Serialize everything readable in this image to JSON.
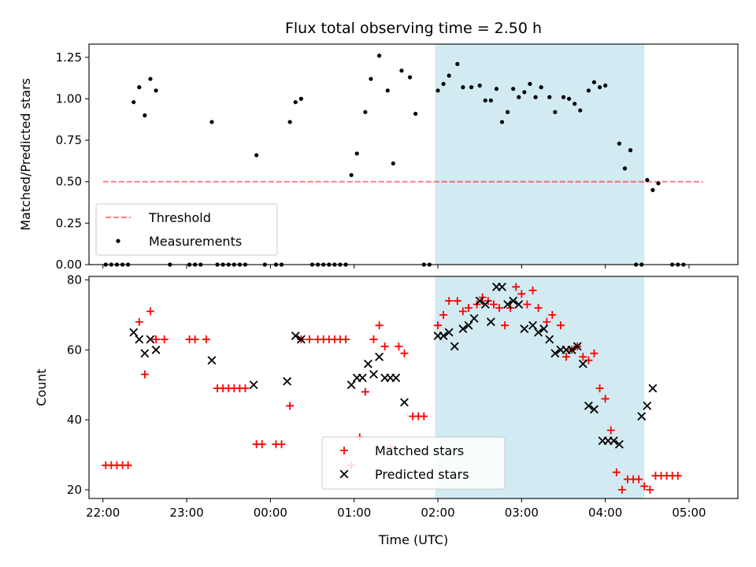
{
  "chart_data": [
    {
      "type": "scatter",
      "title": "Flux total observing time = 2.50 h",
      "ylabel": "Matched/Predicted stars",
      "xlabel": "",
      "xlim": [
        "21:50",
        "05:35"
      ],
      "ylim": [
        0,
        1.33
      ],
      "yticks": [
        "0.00",
        "0.25",
        "0.50",
        "0.75",
        "1.00",
        "1.25"
      ],
      "yticks_values": [
        0,
        0.25,
        0.5,
        0.75,
        1.0,
        1.25
      ],
      "shaded_span": [
        "01:58",
        "04:28"
      ],
      "threshold": {
        "name": "Threshold",
        "value": 0.5,
        "x": [
          "22:00",
          "05:10"
        ]
      },
      "legend": {
        "position": "lower-left",
        "entries": [
          "Threshold",
          "Measurements"
        ]
      },
      "series": [
        {
          "name": "Measurements",
          "points": [
            [
              "22:02",
              0
            ],
            [
              "22:06",
              0
            ],
            [
              "22:10",
              0
            ],
            [
              "22:14",
              0
            ],
            [
              "22:18",
              0
            ],
            [
              "22:22",
              0.98
            ],
            [
              "22:26",
              1.07
            ],
            [
              "22:30",
              0.9
            ],
            [
              "22:34",
              1.12
            ],
            [
              "22:38",
              1.05
            ],
            [
              "22:48",
              0
            ],
            [
              "23:02",
              0
            ],
            [
              "23:06",
              0
            ],
            [
              "23:10",
              0
            ],
            [
              "23:18",
              0.86
            ],
            [
              "23:22",
              0
            ],
            [
              "23:26",
              0
            ],
            [
              "23:30",
              0
            ],
            [
              "23:34",
              0
            ],
            [
              "23:38",
              0
            ],
            [
              "23:42",
              0
            ],
            [
              "23:50",
              0.66
            ],
            [
              "23:56",
              0
            ],
            [
              "00:04",
              0
            ],
            [
              "00:08",
              0
            ],
            [
              "00:14",
              0.86
            ],
            [
              "00:18",
              0.98
            ],
            [
              "00:22",
              1.0
            ],
            [
              "00:30",
              0
            ],
            [
              "00:34",
              0
            ],
            [
              "00:38",
              0
            ],
            [
              "00:42",
              0
            ],
            [
              "00:46",
              0
            ],
            [
              "00:50",
              0
            ],
            [
              "00:54",
              0
            ],
            [
              "00:58",
              0.54
            ],
            [
              "01:02",
              0.67
            ],
            [
              "01:08",
              0.92
            ],
            [
              "01:12",
              1.12
            ],
            [
              "01:18",
              1.26
            ],
            [
              "01:24",
              1.05
            ],
            [
              "01:28",
              0.61
            ],
            [
              "01:34",
              1.17
            ],
            [
              "01:40",
              1.13
            ],
            [
              "01:44",
              0.91
            ],
            [
              "01:50",
              0
            ],
            [
              "01:54",
              0
            ],
            [
              "02:00",
              1.05
            ],
            [
              "02:04",
              1.09
            ],
            [
              "02:08",
              1.14
            ],
            [
              "02:14",
              1.21
            ],
            [
              "02:18",
              1.07
            ],
            [
              "02:24",
              1.07
            ],
            [
              "02:30",
              1.08
            ],
            [
              "02:34",
              0.99
            ],
            [
              "02:38",
              0.99
            ],
            [
              "02:42",
              1.06
            ],
            [
              "02:46",
              0.86
            ],
            [
              "02:50",
              0.92
            ],
            [
              "02:54",
              1.06
            ],
            [
              "02:58",
              1.01
            ],
            [
              "03:02",
              1.04
            ],
            [
              "03:06",
              1.09
            ],
            [
              "03:10",
              1.01
            ],
            [
              "03:14",
              1.07
            ],
            [
              "03:20",
              1.01
            ],
            [
              "03:24",
              0.92
            ],
            [
              "03:30",
              1.01
            ],
            [
              "03:34",
              1.0
            ],
            [
              "03:38",
              0.97
            ],
            [
              "03:42",
              0.93
            ],
            [
              "03:48",
              1.05
            ],
            [
              "03:52",
              1.1
            ],
            [
              "03:56",
              1.07
            ],
            [
              "04:00",
              1.08
            ],
            [
              "04:10",
              0.73
            ],
            [
              "04:14",
              0.58
            ],
            [
              "04:18",
              0.69
            ],
            [
              "04:22",
              0
            ],
            [
              "04:26",
              0
            ],
            [
              "04:30",
              0.51
            ],
            [
              "04:34",
              0.45
            ],
            [
              "04:38",
              0.49
            ],
            [
              "04:48",
              0
            ],
            [
              "04:52",
              0
            ],
            [
              "04:56",
              0
            ]
          ]
        }
      ]
    },
    {
      "type": "scatter",
      "title": "",
      "ylabel": "Count",
      "xlabel": "Time (UTC)",
      "xlim": [
        "21:50",
        "05:35"
      ],
      "ylim": [
        17.5,
        81
      ],
      "yticks": [
        "20",
        "40",
        "60",
        "80"
      ],
      "yticks_values": [
        20,
        40,
        60,
        80
      ],
      "xticks": [
        "22:00",
        "23:00",
        "00:00",
        "01:00",
        "02:00",
        "03:00",
        "04:00",
        "05:00"
      ],
      "shaded_span": [
        "01:58",
        "04:28"
      ],
      "legend": {
        "position": "lower-center",
        "entries": [
          "Matched stars",
          "Predicted stars"
        ]
      },
      "series": [
        {
          "name": "Matched stars",
          "color": "#ff0000",
          "points": [
            [
              "22:02",
              27
            ],
            [
              "22:06",
              27
            ],
            [
              "22:10",
              27
            ],
            [
              "22:14",
              27
            ],
            [
              "22:18",
              27
            ],
            [
              "22:26",
              68
            ],
            [
              "22:30",
              53
            ],
            [
              "22:34",
              71
            ],
            [
              "22:38",
              63
            ],
            [
              "22:44",
              63
            ],
            [
              "23:02",
              63
            ],
            [
              "23:06",
              63
            ],
            [
              "23:14",
              63
            ],
            [
              "23:22",
              49
            ],
            [
              "23:26",
              49
            ],
            [
              "23:30",
              49
            ],
            [
              "23:34",
              49
            ],
            [
              "23:38",
              49
            ],
            [
              "23:42",
              49
            ],
            [
              "23:50",
              33
            ],
            [
              "23:54",
              33
            ],
            [
              "00:04",
              33
            ],
            [
              "00:08",
              33
            ],
            [
              "00:14",
              44
            ],
            [
              "00:22",
              63
            ],
            [
              "00:28",
              63
            ],
            [
              "00:34",
              63
            ],
            [
              "00:38",
              63
            ],
            [
              "00:42",
              63
            ],
            [
              "00:46",
              63
            ],
            [
              "00:50",
              63
            ],
            [
              "00:54",
              63
            ],
            [
              "00:58",
              27
            ],
            [
              "01:04",
              35
            ],
            [
              "01:08",
              48
            ],
            [
              "01:14",
              63
            ],
            [
              "01:18",
              67
            ],
            [
              "01:22",
              61
            ],
            [
              "01:26",
              32
            ],
            [
              "01:32",
              61
            ],
            [
              "01:36",
              59
            ],
            [
              "01:42",
              41
            ],
            [
              "01:46",
              41
            ],
            [
              "01:50",
              41
            ],
            [
              "02:00",
              67
            ],
            [
              "02:04",
              70
            ],
            [
              "02:08",
              74
            ],
            [
              "02:14",
              74
            ],
            [
              "02:18",
              71
            ],
            [
              "02:22",
              72
            ],
            [
              "02:28",
              73
            ],
            [
              "02:32",
              75
            ],
            [
              "02:36",
              74
            ],
            [
              "02:40",
              73
            ],
            [
              "02:44",
              72
            ],
            [
              "02:48",
              67
            ],
            [
              "02:52",
              72
            ],
            [
              "02:56",
              78
            ],
            [
              "03:00",
              76
            ],
            [
              "03:04",
              73
            ],
            [
              "03:08",
              77
            ],
            [
              "03:12",
              72
            ],
            [
              "03:18",
              68
            ],
            [
              "03:22",
              70
            ],
            [
              "03:28",
              67
            ],
            [
              "03:32",
              58
            ],
            [
              "03:36",
              60
            ],
            [
              "03:40",
              61
            ],
            [
              "03:44",
              58
            ],
            [
              "03:48",
              57
            ],
            [
              "03:52",
              59
            ],
            [
              "03:56",
              49
            ],
            [
              "04:00",
              46
            ],
            [
              "04:04",
              37
            ],
            [
              "04:08",
              25
            ],
            [
              "04:12",
              20
            ],
            [
              "04:16",
              23
            ],
            [
              "04:20",
              23
            ],
            [
              "04:24",
              23
            ],
            [
              "04:28",
              21
            ],
            [
              "04:32",
              20
            ],
            [
              "04:36",
              24
            ],
            [
              "04:40",
              24
            ],
            [
              "04:44",
              24
            ],
            [
              "04:48",
              24
            ],
            [
              "04:52",
              24
            ]
          ]
        },
        {
          "name": "Predicted stars",
          "color": "#000000",
          "points": [
            [
              "22:22",
              65
            ],
            [
              "22:26",
              63
            ],
            [
              "22:30",
              59
            ],
            [
              "22:34",
              63
            ],
            [
              "22:38",
              60
            ],
            [
              "23:18",
              57
            ],
            [
              "23:48",
              50
            ],
            [
              "00:12",
              51
            ],
            [
              "00:18",
              64
            ],
            [
              "00:22",
              63
            ],
            [
              "00:58",
              50
            ],
            [
              "01:02",
              52
            ],
            [
              "01:06",
              52
            ],
            [
              "01:10",
              56
            ],
            [
              "01:14",
              53
            ],
            [
              "01:18",
              58
            ],
            [
              "01:22",
              52
            ],
            [
              "01:26",
              52
            ],
            [
              "01:30",
              52
            ],
            [
              "01:36",
              45
            ],
            [
              "02:00",
              64
            ],
            [
              "02:04",
              64
            ],
            [
              "02:08",
              65
            ],
            [
              "02:12",
              61
            ],
            [
              "02:18",
              66
            ],
            [
              "02:22",
              67
            ],
            [
              "02:26",
              69
            ],
            [
              "02:30",
              74
            ],
            [
              "02:34",
              73
            ],
            [
              "02:38",
              68
            ],
            [
              "02:42",
              78
            ],
            [
              "02:46",
              78
            ],
            [
              "02:50",
              73
            ],
            [
              "02:54",
              74
            ],
            [
              "02:58",
              73
            ],
            [
              "03:02",
              66
            ],
            [
              "03:08",
              67
            ],
            [
              "03:12",
              65
            ],
            [
              "03:16",
              66
            ],
            [
              "03:20",
              63
            ],
            [
              "03:24",
              59
            ],
            [
              "03:28",
              60
            ],
            [
              "03:32",
              60
            ],
            [
              "03:36",
              60
            ],
            [
              "03:40",
              61
            ],
            [
              "03:44",
              56
            ],
            [
              "03:48",
              44
            ],
            [
              "03:52",
              43
            ],
            [
              "03:58",
              34
            ],
            [
              "04:02",
              34
            ],
            [
              "04:06",
              34
            ],
            [
              "04:10",
              33
            ],
            [
              "04:26",
              41
            ],
            [
              "04:30",
              44
            ],
            [
              "04:34",
              49
            ]
          ]
        }
      ]
    }
  ]
}
